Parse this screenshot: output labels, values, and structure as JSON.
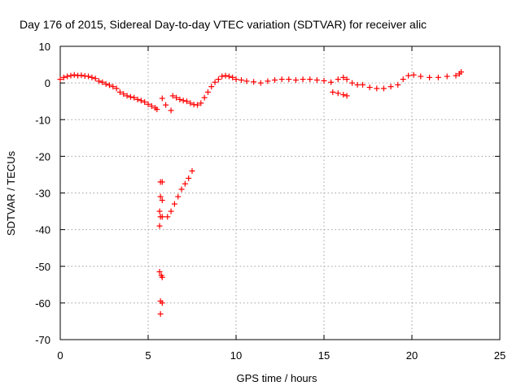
{
  "chart_data": {
    "type": "scatter",
    "title": "Day 176 of 2015, Sidereal Day-to-day VTEC variation (SDTVAR) for receiver alic",
    "xlabel": "GPS time / hours",
    "ylabel": "SDTVAR / TECUs",
    "xlim": [
      0,
      25
    ],
    "ylim": [
      -70,
      10
    ],
    "xticks": [
      "0",
      "5",
      "10",
      "15",
      "20",
      "25"
    ],
    "yticks": [
      "10",
      "0",
      "-10",
      "-20",
      "-30",
      "-40",
      "-50",
      "-60",
      "-70"
    ],
    "grid": true,
    "marker": "+",
    "color": "#ff0000",
    "series": [
      {
        "points": [
          [
            0.0,
            1.0
          ],
          [
            0.2,
            1.5
          ],
          [
            0.4,
            1.8
          ],
          [
            0.6,
            2.0
          ],
          [
            0.8,
            2.2
          ],
          [
            1.0,
            2.0
          ],
          [
            1.2,
            2.1
          ],
          [
            1.4,
            1.9
          ],
          [
            1.6,
            1.8
          ],
          [
            1.8,
            1.5
          ],
          [
            2.0,
            1.2
          ],
          [
            2.2,
            0.5
          ],
          [
            2.4,
            0.2
          ],
          [
            2.6,
            -0.3
          ],
          [
            2.8,
            -0.6
          ],
          [
            3.0,
            -1.0
          ],
          [
            3.2,
            -1.5
          ],
          [
            3.4,
            -2.5
          ],
          [
            3.6,
            -3.0
          ],
          [
            3.8,
            -3.5
          ],
          [
            4.0,
            -3.8
          ],
          [
            4.2,
            -4.0
          ],
          [
            4.4,
            -4.5
          ],
          [
            4.6,
            -4.8
          ],
          [
            4.8,
            -5.2
          ],
          [
            5.0,
            -5.8
          ],
          [
            5.2,
            -6.3
          ],
          [
            5.4,
            -6.8
          ],
          [
            5.5,
            -7.2
          ],
          [
            5.8,
            -4.2
          ],
          [
            6.0,
            -6.0
          ],
          [
            6.3,
            -7.5
          ],
          [
            6.4,
            -3.5
          ],
          [
            6.6,
            -4.0
          ],
          [
            6.8,
            -4.5
          ],
          [
            7.0,
            -4.8
          ],
          [
            7.2,
            -5.0
          ],
          [
            7.4,
            -5.5
          ],
          [
            7.6,
            -5.9
          ],
          [
            7.8,
            -6.0
          ],
          [
            8.0,
            -5.5
          ],
          [
            8.2,
            -4.0
          ],
          [
            8.4,
            -2.5
          ],
          [
            8.6,
            -1.0
          ],
          [
            8.8,
            0.2
          ],
          [
            9.0,
            1.0
          ],
          [
            9.2,
            1.8
          ],
          [
            9.4,
            2.0
          ],
          [
            9.6,
            1.8
          ],
          [
            9.8,
            1.5
          ],
          [
            10.0,
            1.0
          ],
          [
            10.3,
            0.8
          ],
          [
            10.6,
            0.5
          ],
          [
            11.0,
            0.3
          ],
          [
            11.4,
            0.0
          ],
          [
            11.8,
            0.5
          ],
          [
            12.2,
            0.8
          ],
          [
            12.6,
            1.0
          ],
          [
            13.0,
            1.0
          ],
          [
            13.4,
            0.8
          ],
          [
            13.8,
            1.0
          ],
          [
            14.2,
            1.0
          ],
          [
            14.6,
            0.8
          ],
          [
            15.0,
            0.6
          ],
          [
            15.4,
            0.2
          ],
          [
            15.8,
            1.0
          ],
          [
            16.1,
            1.5
          ],
          [
            16.3,
            1.0
          ],
          [
            15.5,
            -2.5
          ],
          [
            15.8,
            -2.8
          ],
          [
            16.1,
            -3.2
          ],
          [
            16.3,
            -3.5
          ],
          [
            16.6,
            0.0
          ],
          [
            16.9,
            -0.5
          ],
          [
            17.2,
            -0.5
          ],
          [
            17.6,
            -1.2
          ],
          [
            18.0,
            -1.5
          ],
          [
            18.4,
            -1.5
          ],
          [
            18.8,
            -1.0
          ],
          [
            19.2,
            -0.5
          ],
          [
            19.5,
            1.0
          ],
          [
            19.8,
            2.0
          ],
          [
            20.1,
            2.2
          ],
          [
            20.5,
            1.8
          ],
          [
            21.0,
            1.5
          ],
          [
            21.5,
            1.5
          ],
          [
            22.0,
            1.8
          ],
          [
            22.5,
            2.0
          ],
          [
            22.7,
            2.5
          ],
          [
            22.8,
            3.0
          ]
        ]
      },
      {
        "points": [
          [
            5.7,
            -27
          ],
          [
            5.8,
            -27
          ],
          [
            5.7,
            -31
          ],
          [
            5.8,
            -32
          ],
          [
            5.65,
            -35
          ],
          [
            5.7,
            -36.5
          ],
          [
            5.8,
            -36.5
          ],
          [
            5.65,
            -39
          ],
          [
            5.65,
            -51.5
          ],
          [
            5.75,
            -52.5
          ],
          [
            5.8,
            -53
          ],
          [
            5.7,
            -59.5
          ],
          [
            5.8,
            -60
          ],
          [
            5.7,
            -63
          ]
        ]
      },
      {
        "points": [
          [
            6.1,
            -36.5
          ],
          [
            6.3,
            -35
          ],
          [
            6.5,
            -33
          ],
          [
            6.7,
            -31
          ],
          [
            6.9,
            -29
          ],
          [
            7.1,
            -27.5
          ],
          [
            7.3,
            -26
          ],
          [
            7.5,
            -24
          ]
        ]
      }
    ]
  }
}
